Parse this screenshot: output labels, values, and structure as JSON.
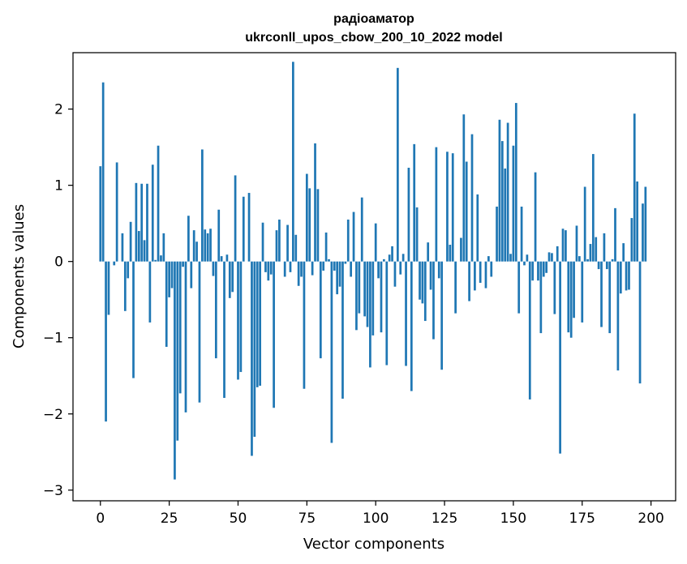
{
  "chart_data": {
    "type": "bar",
    "title": "радіоаматор",
    "subtitle": "ukrconll_upos_cbow_200_10_2022 model",
    "xlabel": "Vector components",
    "ylabel": "Components values",
    "xlim": [
      -9.95,
      208.95
    ],
    "ylim": [
      -3.14,
      2.74
    ],
    "x_ticks": [
      0,
      25,
      50,
      75,
      100,
      125,
      150,
      175,
      200
    ],
    "y_ticks": [
      -3,
      -2,
      -1,
      0,
      1,
      2
    ],
    "x_tick_labels": [
      "0",
      "25",
      "50",
      "75",
      "100",
      "125",
      "150",
      "175",
      "200"
    ],
    "y_tick_labels": [
      "−3",
      "−2",
      "−1",
      "0",
      "1",
      "2"
    ],
    "grid": false,
    "bar_color": "#1f77b4",
    "values": [
      1.25,
      2.35,
      -2.1,
      -0.7,
      0.0,
      -0.05,
      1.3,
      0.0,
      0.37,
      -0.65,
      -0.22,
      0.52,
      -1.53,
      1.03,
      0.4,
      1.02,
      0.28,
      1.02,
      -0.8,
      1.27,
      0.02,
      1.52,
      0.08,
      0.37,
      -1.12,
      -0.47,
      -0.35,
      -2.86,
      -2.35,
      -1.73,
      -0.07,
      -1.98,
      0.6,
      -0.35,
      0.41,
      0.26,
      -1.85,
      1.47,
      0.42,
      0.37,
      0.43,
      -0.19,
      -1.27,
      0.68,
      0.07,
      -1.79,
      0.09,
      -0.48,
      -0.4,
      1.13,
      -1.55,
      -1.45,
      0.85,
      0.0,
      0.9,
      -2.55,
      -2.3,
      -1.65,
      -1.63,
      0.51,
      -0.14,
      -0.25,
      -0.17,
      -1.92,
      0.41,
      0.55,
      0.0,
      -0.2,
      0.48,
      -0.14,
      2.62,
      0.35,
      -0.32,
      -0.2,
      -1.67,
      1.15,
      0.96,
      -0.18,
      1.55,
      0.95,
      -1.27,
      -0.12,
      0.38,
      0.03,
      -2.38,
      -0.12,
      -0.43,
      -0.33,
      -1.8,
      -0.03,
      0.55,
      -0.2,
      0.65,
      -0.9,
      -0.68,
      0.84,
      -0.72,
      -0.86,
      -1.39,
      -0.97,
      0.5,
      -0.22,
      -0.93,
      0.03,
      -1.36,
      0.09,
      0.2,
      -0.33,
      2.54,
      -0.17,
      0.1,
      -1.37,
      1.23,
      -1.7,
      1.54,
      0.71,
      -0.5,
      -0.55,
      -0.78,
      0.25,
      -0.37,
      -1.02,
      1.5,
      -0.22,
      -1.42,
      0.0,
      1.44,
      0.22,
      1.42,
      -0.68,
      0.0,
      0.31,
      1.93,
      1.31,
      -0.52,
      1.67,
      -0.38,
      0.88,
      -0.28,
      0.0,
      -0.35,
      0.07,
      -0.2,
      0.0,
      0.72,
      1.86,
      1.58,
      1.22,
      1.82,
      0.1,
      1.52,
      2.08,
      -0.68,
      0.72,
      -0.05,
      0.09,
      -1.81,
      -0.25,
      1.17,
      -0.25,
      -0.94,
      -0.2,
      -0.15,
      0.12,
      0.11,
      -0.69,
      0.2,
      -2.52,
      0.43,
      0.41,
      -0.93,
      -1.0,
      -0.74,
      0.47,
      0.07,
      -0.8,
      0.98,
      0.03,
      0.23,
      1.41,
      0.32,
      -0.1,
      -0.86,
      0.37,
      -0.1,
      -0.94,
      0.03,
      0.7,
      -1.43,
      -0.42,
      0.24,
      -0.38,
      -0.37,
      0.57,
      1.94,
      1.05,
      -1.6,
      0.76,
      0.98
    ]
  }
}
